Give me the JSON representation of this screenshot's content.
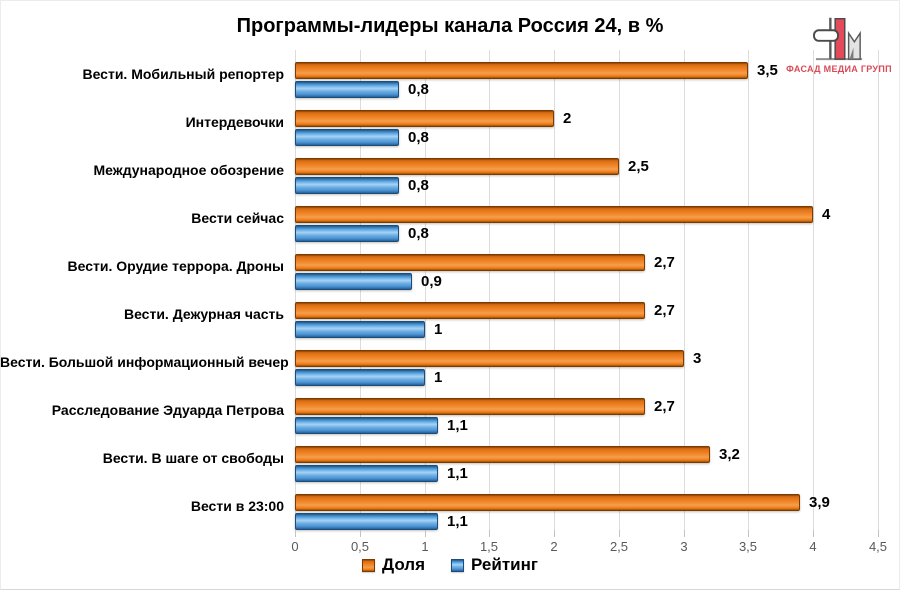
{
  "title": "Программы-лидеры канала Россия 24, в %",
  "logo": {
    "text": "ФАСАД МЕДИА ГРУПП",
    "accent_color": "#d94b57"
  },
  "colors": {
    "share": "#ED7D31",
    "rating": "#4D96D4",
    "gridline": "#DCDCDC",
    "axis_text": "#595959"
  },
  "chart_data": {
    "type": "bar",
    "orientation": "horizontal",
    "title": "Программы-лидеры канала Россия 24, в %",
    "categories": [
      "Вести. Мобильный репортер",
      "Интердевочки",
      "Международное обозрение",
      "Вести сейчас",
      "Вести. Орудие террора. Дроны",
      "Вести. Дежурная часть",
      "Вести. Большой информационный вечер",
      "Расследование Эдуарда Петрова",
      "Вести. В шаге от свободы",
      "Вести в 23:00"
    ],
    "series": [
      {
        "name": "Доля",
        "color": "#ED7D31",
        "values": [
          3.5,
          2,
          2.5,
          4,
          2.7,
          2.7,
          3,
          2.7,
          3.2,
          3.9
        ],
        "labels": [
          "3,5",
          "2",
          "2,5",
          "4",
          "2,7",
          "2,7",
          "3",
          "2,7",
          "3,2",
          "3,9"
        ]
      },
      {
        "name": "Рейтинг",
        "color": "#4D96D4",
        "values": [
          0.8,
          0.8,
          0.8,
          0.8,
          0.9,
          1,
          1,
          1.1,
          1.1,
          1.1
        ],
        "labels": [
          "0,8",
          "0,8",
          "0,8",
          "0,8",
          "0,9",
          "1",
          "1",
          "1,1",
          "1,1",
          "1,1"
        ]
      }
    ],
    "xlim": [
      0,
      4.5
    ],
    "x_tick_values": [
      0,
      0.5,
      1,
      1.5,
      2,
      2.5,
      3,
      3.5,
      4,
      4.5
    ],
    "x_ticks": [
      "0",
      "0,5",
      "1",
      "1,5",
      "2",
      "2,5",
      "3",
      "3,5",
      "4",
      "4,5"
    ],
    "grid": true,
    "legend_position": "bottom"
  }
}
